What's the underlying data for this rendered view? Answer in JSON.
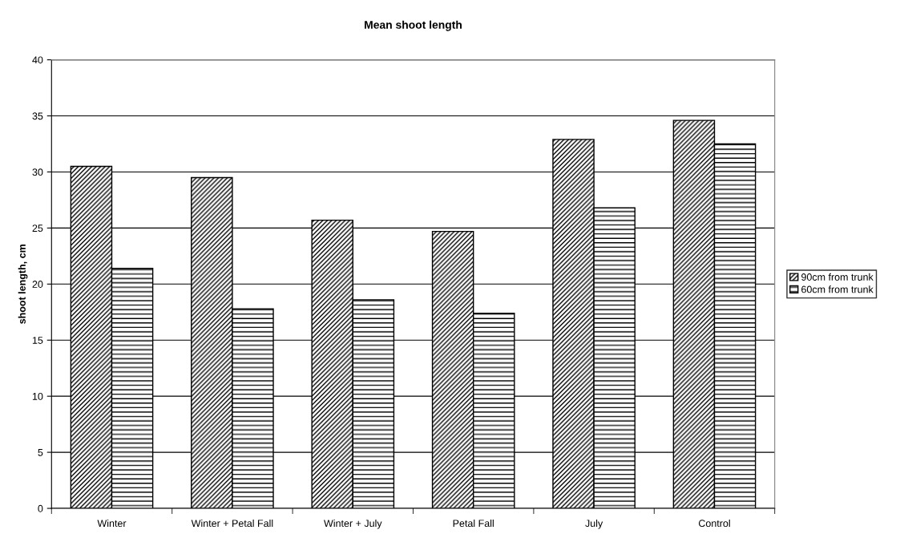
{
  "chart_data": {
    "type": "bar",
    "title": "Mean shoot length",
    "ylabel": "shoot length, cm",
    "categories": [
      "Winter",
      "Winter + Petal Fall",
      "Winter + July",
      "Petal Fall",
      "July",
      "Control"
    ],
    "series": [
      {
        "name": "90cm from trunk",
        "color": "#000000",
        "values": [
          30.5,
          29.5,
          25.7,
          24.7,
          32.9,
          34.6
        ]
      },
      {
        "name": "60cm from trunk",
        "color": "#000000",
        "values": [
          21.4,
          17.8,
          18.6,
          17.4,
          26.8,
          32.5
        ]
      }
    ],
    "ylim": [
      0,
      40
    ],
    "yticks": [
      0,
      5,
      10,
      15,
      20,
      25,
      30,
      35,
      40
    ],
    "grid": "y",
    "legend": "right"
  }
}
